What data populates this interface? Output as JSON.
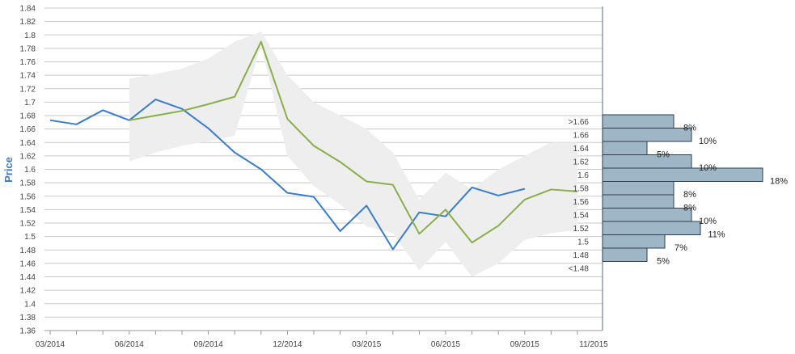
{
  "chart_data": {
    "type": "line",
    "ylabel": "Price",
    "ylim": [
      1.36,
      1.84
    ],
    "y_ticks": [
      "1.36",
      "1.38",
      "1.4",
      "1.42",
      "1.44",
      "1.46",
      "1.48",
      "1.5",
      "1.52",
      "1.54",
      "1.56",
      "1.58",
      "1.6",
      "1.62",
      "1.64",
      "1.66",
      "1.68",
      "1.7",
      "1.72",
      "1.74",
      "1.76",
      "1.78",
      "1.8",
      "1.82",
      "1.84"
    ],
    "x_tick_labels": [
      "03/2014",
      "06/2014",
      "09/2014",
      "12/2014",
      "03/2015",
      "06/2015",
      "09/2015",
      "11/2015"
    ],
    "x_months": [
      "2014-03",
      "2014-04",
      "2014-05",
      "2014-06",
      "2014-07",
      "2014-08",
      "2014-09",
      "2014-10",
      "2014-11",
      "2014-12",
      "2015-01",
      "2015-02",
      "2015-03",
      "2015-04",
      "2015-05",
      "2015-06",
      "2015-07",
      "2015-08",
      "2015-09",
      "2015-10",
      "2015-11"
    ],
    "grid": true,
    "colors": {
      "actual": "#3a7cc8",
      "forecast": "#8aae4a",
      "band": "#eeeeee",
      "histogram_bar": "#9fb6c6",
      "histogram_border": "#2c3e50",
      "grid": "#c8c8c8"
    },
    "series": [
      {
        "key": "actual",
        "months": [
          "2014-03",
          "2014-04",
          "2014-05",
          "2014-06",
          "2014-07",
          "2014-08",
          "2014-09",
          "2014-10",
          "2014-11",
          "2014-12",
          "2015-01",
          "2015-02",
          "2015-03",
          "2015-04",
          "2015-05",
          "2015-06",
          "2015-07",
          "2015-08",
          "2015-09"
        ],
        "values": [
          1.673,
          1.667,
          1.688,
          1.673,
          1.704,
          1.69,
          1.661,
          1.625,
          1.6,
          1.565,
          1.559,
          1.508,
          1.546,
          1.481,
          1.536,
          1.53,
          1.573,
          1.561,
          1.571
        ]
      },
      {
        "key": "forecast",
        "months": [
          "2014-06",
          "2014-07",
          "2014-08",
          "2014-09",
          "2014-10",
          "2014-11",
          "2014-12",
          "2015-01",
          "2015-02",
          "2015-03",
          "2015-04",
          "2015-05",
          "2015-06",
          "2015-07",
          "2015-08",
          "2015-09",
          "2015-10",
          "2015-11"
        ],
        "values": [
          1.673,
          1.68,
          1.687,
          1.697,
          1.708,
          1.79,
          1.675,
          1.635,
          1.611,
          1.582,
          1.577,
          1.504,
          1.54,
          1.491,
          1.516,
          1.555,
          1.57,
          1.567
        ]
      }
    ],
    "band": {
      "months": [
        "2014-06",
        "2014-07",
        "2014-08",
        "2014-09",
        "2014-10",
        "2014-11",
        "2014-12",
        "2015-01",
        "2015-02",
        "2015-03",
        "2015-04",
        "2015-05",
        "2015-06",
        "2015-07",
        "2015-08",
        "2015-09",
        "2015-10",
        "2015-11"
      ],
      "upper": [
        1.735,
        1.742,
        1.75,
        1.765,
        1.79,
        1.805,
        1.74,
        1.7,
        1.68,
        1.66,
        1.625,
        1.555,
        1.595,
        1.57,
        1.6,
        1.62,
        1.64,
        1.64
      ],
      "lower": [
        1.612,
        1.625,
        1.635,
        1.642,
        1.65,
        1.785,
        1.62,
        1.575,
        1.548,
        1.515,
        1.505,
        1.45,
        1.492,
        1.44,
        1.46,
        1.495,
        1.505,
        1.51
      ]
    },
    "histogram": [
      {
        "label": ">1.66",
        "percent": "8%",
        "value": 8
      },
      {
        "label": "1.66",
        "percent": "10%",
        "value": 10
      },
      {
        "label": "1.64",
        "percent": "5%",
        "value": 5
      },
      {
        "label": "1.62",
        "percent": "10%",
        "value": 10
      },
      {
        "label": "1.6",
        "percent": "18%",
        "value": 18
      },
      {
        "label": "1.58",
        "percent": "8%",
        "value": 8
      },
      {
        "label": "1.56",
        "percent": "8%",
        "value": 8
      },
      {
        "label": "1.54",
        "percent": "10%",
        "value": 10
      },
      {
        "label": "1.52",
        "percent": "11%",
        "value": 11
      },
      {
        "label": "1.5",
        "percent": "7%",
        "value": 7
      },
      {
        "label": "1.48",
        "percent": "5%",
        "value": 5
      },
      {
        "label": "<1.48",
        "percent": "",
        "value": 0
      }
    ]
  }
}
